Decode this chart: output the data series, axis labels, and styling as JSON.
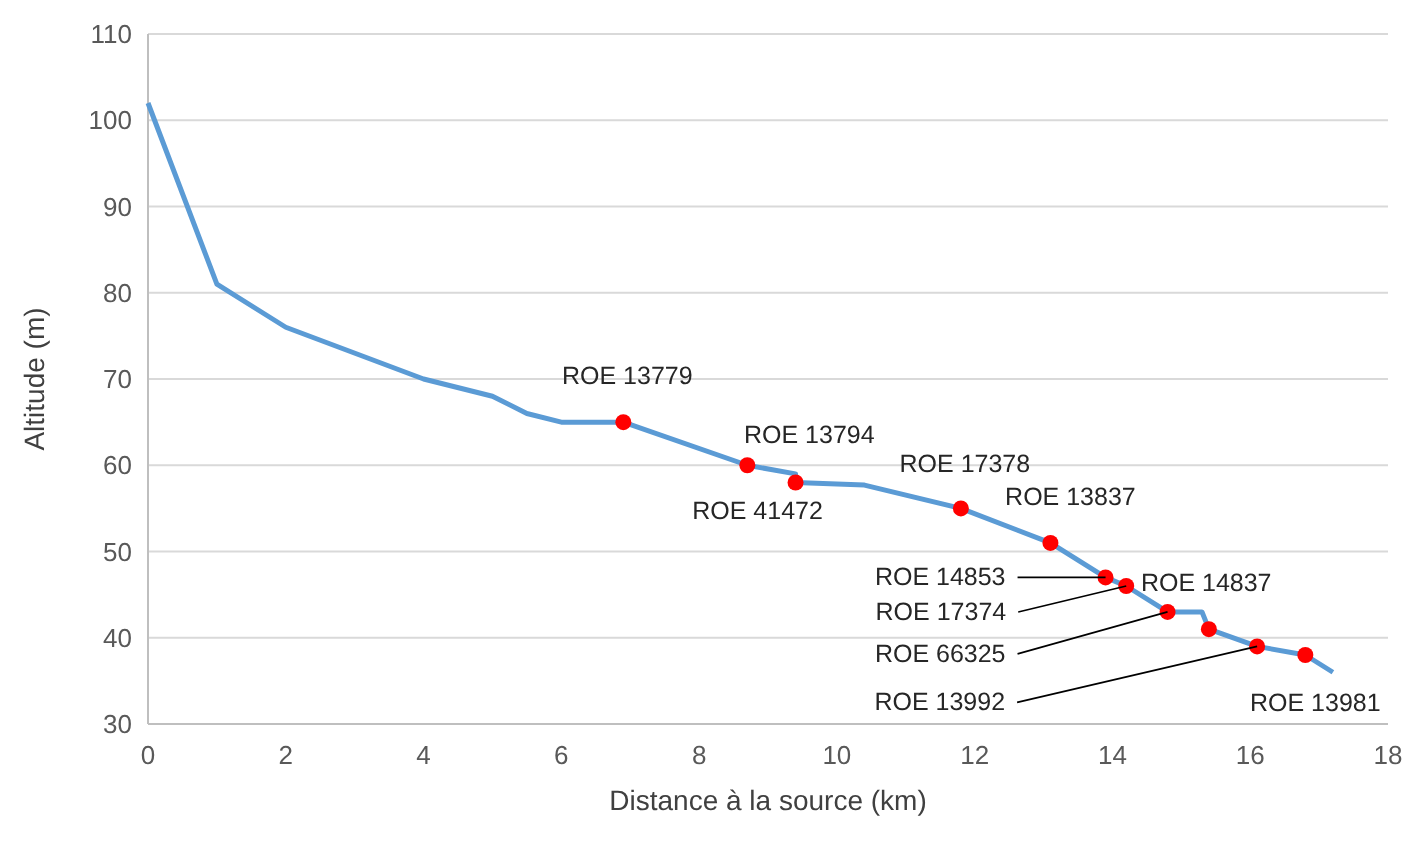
{
  "chart_data": {
    "type": "line",
    "xlabel": "Distance à la source (km)",
    "ylabel": "Altitude (m)",
    "xlim": [
      0,
      18
    ],
    "xticks": [
      0,
      2,
      4,
      6,
      8,
      10,
      12,
      14,
      16,
      18
    ],
    "ylim": [
      30,
      110
    ],
    "yticks": [
      30,
      40,
      50,
      60,
      70,
      80,
      90,
      100,
      110
    ],
    "grid": "y",
    "series": [
      {
        "color": "#5b9bd5",
        "x": [
          0,
          1,
          2,
          4,
          5,
          5.5,
          6,
          6.9,
          8.7,
          9.4,
          9.4,
          10.4,
          11.8,
          13.1,
          13.9,
          14.2,
          14.8,
          15.3,
          15.4,
          16.1,
          16.8,
          17.2
        ],
        "values": [
          102,
          81,
          76,
          70,
          68,
          66,
          65,
          65,
          60,
          59,
          58,
          57.7,
          55,
          51,
          47,
          46,
          43,
          43,
          41,
          39,
          38,
          36
        ]
      },
      {
        "type": "scatter",
        "color": "#ff0000",
        "marker": "circle",
        "x": [
          6.9,
          8.7,
          9.4,
          11.8,
          13.1,
          13.9,
          14.2,
          14.8,
          15.4,
          16.1,
          16.8
        ],
        "values": [
          65,
          60,
          58,
          55,
          51,
          47,
          46,
          43,
          41,
          39,
          38
        ]
      }
    ],
    "annotations": [
      {
        "text": "ROE 13779",
        "x": 6.9,
        "y": 65
      },
      {
        "text": "ROE 13794",
        "x": 8.7,
        "y": 60
      },
      {
        "text": "ROE 41472",
        "x": 9.4,
        "y": 58
      },
      {
        "text": "ROE 17378",
        "x": 11.8,
        "y": 55
      },
      {
        "text": "ROE 13837",
        "x": 13.1,
        "y": 51
      },
      {
        "text": "ROE 14853",
        "x": 13.9,
        "y": 47
      },
      {
        "text": "ROE 17374",
        "x": 14.2,
        "y": 46
      },
      {
        "text": "ROE 14837",
        "x": 15.4,
        "y": 41
      },
      {
        "text": "ROE 66325",
        "x": 14.8,
        "y": 43
      },
      {
        "text": "ROE 13992",
        "x": 16.1,
        "y": 39
      },
      {
        "text": "ROE 13981",
        "x": 16.8,
        "y": 38
      }
    ]
  }
}
